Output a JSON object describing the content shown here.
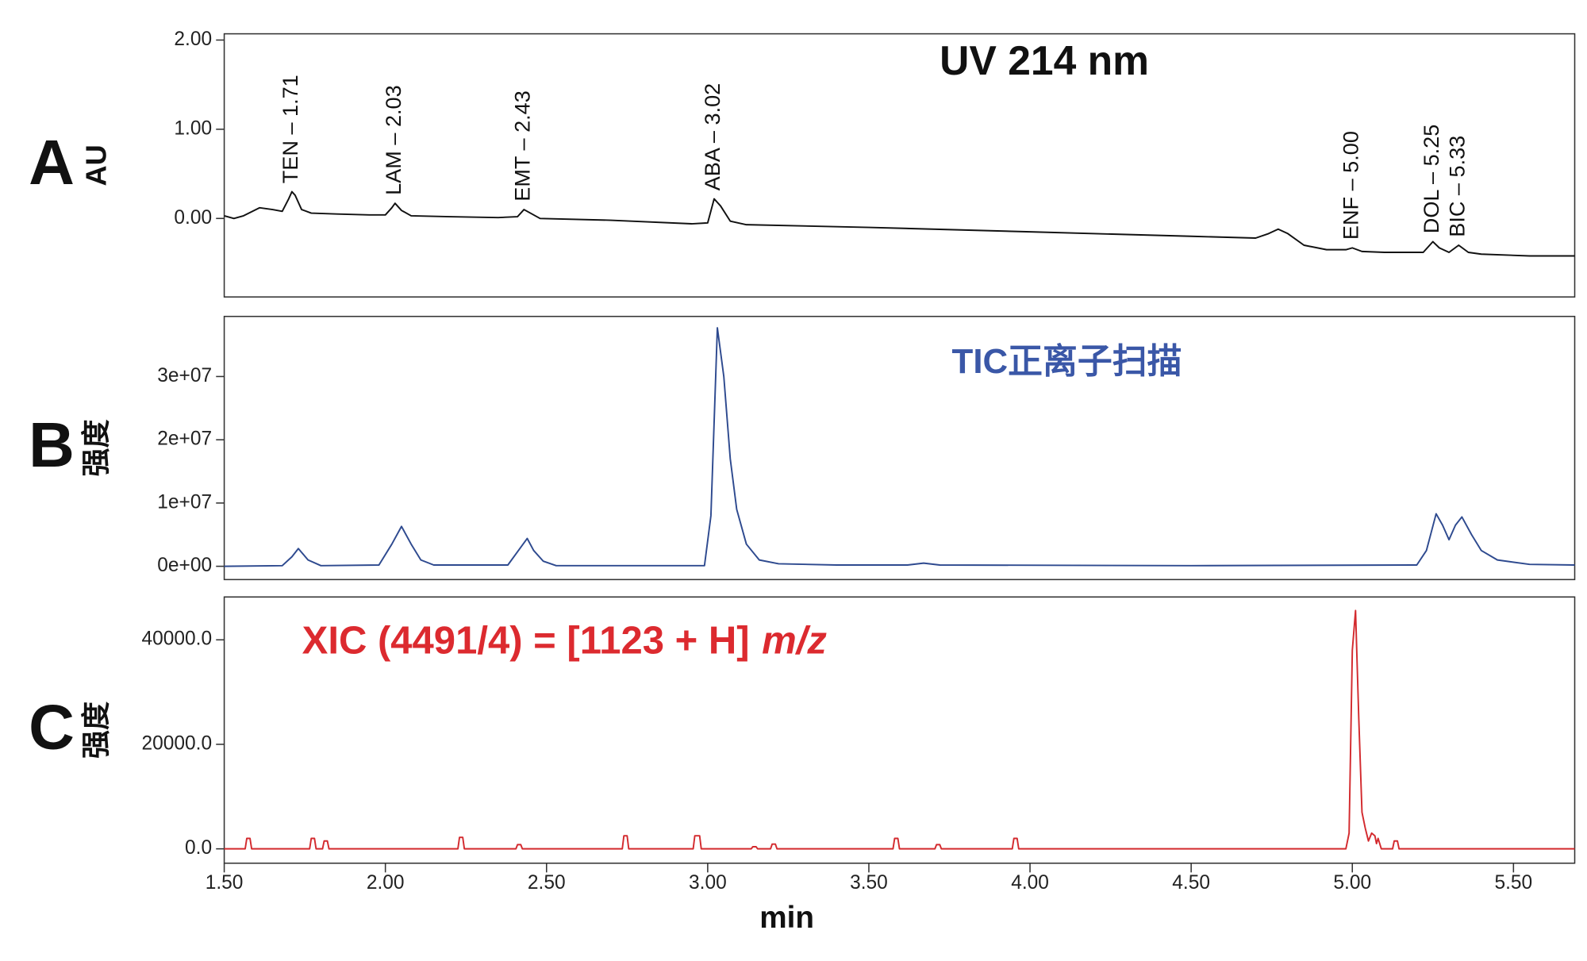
{
  "chart_data": [
    {
      "type": "line",
      "panel": "A",
      "ylabel": "AU",
      "title": "UV 214 nm",
      "color": "#111111",
      "xlim": [
        1.5,
        5.69
      ],
      "ylim": [
        -0.88,
        2.07
      ],
      "yticks": [
        {
          "value": 0,
          "label": "0.00"
        },
        {
          "value": 1,
          "label": "1.00"
        },
        {
          "value": 2,
          "label": "2.00"
        }
      ],
      "annotations": [
        {
          "text": "TEN – 1.71",
          "x": 1.71
        },
        {
          "text": "LAM – 2.03",
          "x": 2.03
        },
        {
          "text": "EMT – 2.43",
          "x": 2.43
        },
        {
          "text": "ABA – 3.02",
          "x": 3.02
        },
        {
          "text": "ENF – 5.00",
          "x": 5.0
        },
        {
          "text": "DOL – 5.25",
          "x": 5.25
        },
        {
          "text": "BIC – 5.33",
          "x": 5.33
        }
      ],
      "x": [
        1.5,
        1.53,
        1.56,
        1.61,
        1.65,
        1.68,
        1.7,
        1.71,
        1.72,
        1.74,
        1.77,
        1.85,
        1.95,
        2.0,
        2.02,
        2.03,
        2.05,
        2.08,
        2.2,
        2.35,
        2.41,
        2.43,
        2.45,
        2.48,
        2.7,
        2.95,
        3.0,
        3.02,
        3.04,
        3.07,
        3.12,
        3.5,
        4.0,
        4.5,
        4.7,
        4.74,
        4.77,
        4.8,
        4.85,
        4.92,
        4.98,
        5.0,
        5.03,
        5.1,
        5.22,
        5.25,
        5.27,
        5.3,
        5.33,
        5.36,
        5.4,
        5.55,
        5.69
      ],
      "y": [
        0.03,
        0.0,
        0.03,
        0.12,
        0.1,
        0.08,
        0.22,
        0.3,
        0.26,
        0.1,
        0.06,
        0.05,
        0.04,
        0.04,
        0.12,
        0.17,
        0.09,
        0.03,
        0.02,
        0.01,
        0.02,
        0.1,
        0.06,
        0.0,
        -0.02,
        -0.06,
        -0.05,
        0.22,
        0.14,
        -0.03,
        -0.07,
        -0.1,
        -0.15,
        -0.2,
        -0.22,
        -0.17,
        -0.12,
        -0.17,
        -0.3,
        -0.35,
        -0.35,
        -0.33,
        -0.37,
        -0.38,
        -0.38,
        -0.26,
        -0.33,
        -0.38,
        -0.3,
        -0.38,
        -0.4,
        -0.42,
        -0.42
      ]
    },
    {
      "type": "line",
      "panel": "B",
      "ylabel": "强度",
      "title": "TIC正离子扫描",
      "color": "#2e4a8f",
      "xlim": [
        1.5,
        5.69
      ],
      "ylim": [
        -2100000,
        39500000
      ],
      "yticks": [
        {
          "value": 0,
          "label": "0e+00"
        },
        {
          "value": 10000000,
          "label": "1e+07"
        },
        {
          "value": 20000000,
          "label": "2e+07"
        },
        {
          "value": 30000000,
          "label": "3e+07"
        }
      ],
      "x": [
        1.5,
        1.68,
        1.71,
        1.73,
        1.76,
        1.8,
        1.98,
        2.02,
        2.05,
        2.08,
        2.11,
        2.15,
        2.38,
        2.42,
        2.44,
        2.46,
        2.49,
        2.53,
        2.99,
        3.01,
        3.03,
        3.05,
        3.07,
        3.09,
        3.12,
        3.16,
        3.22,
        3.4,
        3.62,
        3.67,
        3.72,
        4.5,
        5.2,
        5.23,
        5.26,
        5.28,
        5.3,
        5.32,
        5.34,
        5.37,
        5.4,
        5.45,
        5.55,
        5.69
      ],
      "y": [
        0,
        100000,
        1500000,
        2800000,
        1000000,
        100000,
        200000,
        3500000,
        6300000,
        3500000,
        1000000,
        200000,
        200000,
        3000000,
        4400000,
        2500000,
        800000,
        100000,
        100000,
        8000000,
        37700000,
        30000000,
        17000000,
        9000000,
        3500000,
        1000000,
        400000,
        200000,
        200000,
        500000,
        200000,
        100000,
        200000,
        2500000,
        8300000,
        6500000,
        4200000,
        6500000,
        7800000,
        5000000,
        2500000,
        1000000,
        300000,
        200000
      ]
    },
    {
      "type": "line",
      "panel": "C",
      "ylabel": "强度",
      "title": "XIC (4491/4) = [1123 + H]",
      "title_italic": "m/z",
      "color": "#d32a2e",
      "xlabel": "min",
      "xlim": [
        1.5,
        5.69
      ],
      "ylim": [
        -2750,
        48200
      ],
      "xticks": [
        {
          "value": 1.5,
          "label": "1.50"
        },
        {
          "value": 2,
          "label": "2.00"
        },
        {
          "value": 2.5,
          "label": "2.50"
        },
        {
          "value": 3,
          "label": "3.00"
        },
        {
          "value": 3.5,
          "label": "3.50"
        },
        {
          "value": 4,
          "label": "4.00"
        },
        {
          "value": 4.5,
          "label": "4.50"
        },
        {
          "value": 5,
          "label": "5.00"
        },
        {
          "value": 5.5,
          "label": "5.50"
        }
      ],
      "yticks": [
        {
          "value": 0,
          "label": "0.0"
        },
        {
          "value": 20000,
          "label": "20000.0"
        },
        {
          "value": 40000,
          "label": "40000.0"
        }
      ],
      "x": [
        1.5,
        1.565,
        1.57,
        1.58,
        1.585,
        1.765,
        1.77,
        1.78,
        1.785,
        1.805,
        1.81,
        1.82,
        1.825,
        2.225,
        2.23,
        2.24,
        2.245,
        2.405,
        2.41,
        2.42,
        2.425,
        2.735,
        2.74,
        2.75,
        2.755,
        2.955,
        2.96,
        2.975,
        2.98,
        3.135,
        3.14,
        3.15,
        3.155,
        3.195,
        3.2,
        3.21,
        3.215,
        3.575,
        3.58,
        3.59,
        3.595,
        3.705,
        3.71,
        3.72,
        3.725,
        3.945,
        3.95,
        3.96,
        3.965,
        4.98,
        4.99,
        5.0,
        5.01,
        5.02,
        5.03,
        5.04,
        5.05,
        5.06,
        5.07,
        5.075,
        5.08,
        5.09,
        5.125,
        5.13,
        5.14,
        5.145,
        5.69
      ],
      "y": [
        0,
        0,
        2000,
        2000,
        0,
        0,
        2000,
        2000,
        0,
        0,
        1500,
        1500,
        0,
        0,
        2200,
        2200,
        0,
        0,
        800,
        800,
        0,
        0,
        2500,
        2500,
        0,
        0,
        2500,
        2500,
        0,
        0,
        400,
        400,
        0,
        0,
        900,
        900,
        0,
        0,
        2000,
        2000,
        0,
        0,
        800,
        800,
        0,
        0,
        2000,
        2000,
        0,
        0,
        3000,
        38000,
        45600,
        25000,
        7000,
        4000,
        1500,
        3000,
        2500,
        1000,
        2000,
        0,
        0,
        1500,
        1500,
        0,
        0
      ]
    }
  ]
}
